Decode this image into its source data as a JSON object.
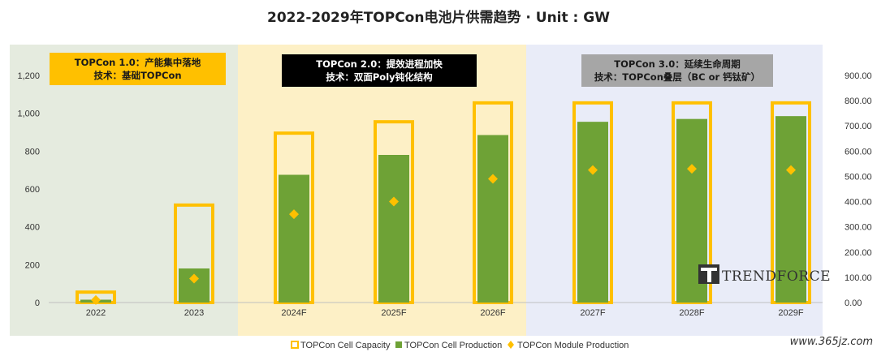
{
  "chart_data": {
    "type": "bar",
    "title": "2022-2029年TOPCon电池片供需趋势 · Unit : GW",
    "categories": [
      "2022",
      "2023",
      "2024F",
      "2025F",
      "2026F",
      "2027F",
      "2028F",
      "2029F"
    ],
    "series": [
      {
        "name": "TOPCon Cell Capacity",
        "axis": "left",
        "values": [
          55,
          515,
          895,
          955,
          1055,
          1055,
          1055,
          1055
        ]
      },
      {
        "name": "TOPCon Cell Production",
        "axis": "left",
        "values": [
          15,
          180,
          675,
          780,
          885,
          955,
          970,
          985
        ]
      },
      {
        "name": "TOPCon Module Production",
        "axis": "right",
        "values": [
          10,
          95,
          350,
          400,
          490,
          525,
          530,
          525
        ]
      }
    ],
    "left_axis": {
      "min": 0,
      "max": 1200,
      "ticks": [
        "0",
        "200",
        "400",
        "600",
        "800",
        "1,000",
        "1,200"
      ]
    },
    "right_axis": {
      "min": 0,
      "max": 900,
      "ticks": [
        "0.00",
        "100.00",
        "200.00",
        "300.00",
        "400.00",
        "500.00",
        "600.00",
        "700.00",
        "800.00",
        "900.00"
      ]
    },
    "eras": [
      {
        "line1": "TOPCon 1.0：产能集中落地",
        "line2": "技术：基础TOPCon",
        "bg": "#e5ebdf",
        "label_bg": "#ffc000",
        "label_color": "#1a1a1a",
        "from": 0,
        "to": 1
      },
      {
        "line1": "TOPCon 2.0：提效进程加快",
        "line2": "技术：双面Poly钝化结构",
        "bg": "#fdf0c6",
        "label_bg": "#000000",
        "label_color": "#ffffff",
        "from": 2,
        "to": 4
      },
      {
        "line1": "TOPCon 3.0：延续生命周期",
        "line2": "技术：TOPCon叠层（BC or 钙钛矿）",
        "bg": "#e9ecf8",
        "label_bg": "#a6a6a6",
        "label_color": "#1a1a1a",
        "from": 5,
        "to": 7
      }
    ],
    "colors": {
      "capacity": "#ffc000",
      "production": "#6ea236",
      "module": "#ffc000"
    },
    "legend": {
      "position": "bottom"
    },
    "grid": false
  },
  "branding": {
    "logo_text": "TRENDFORCE",
    "watermark": "www.365jz.com"
  }
}
